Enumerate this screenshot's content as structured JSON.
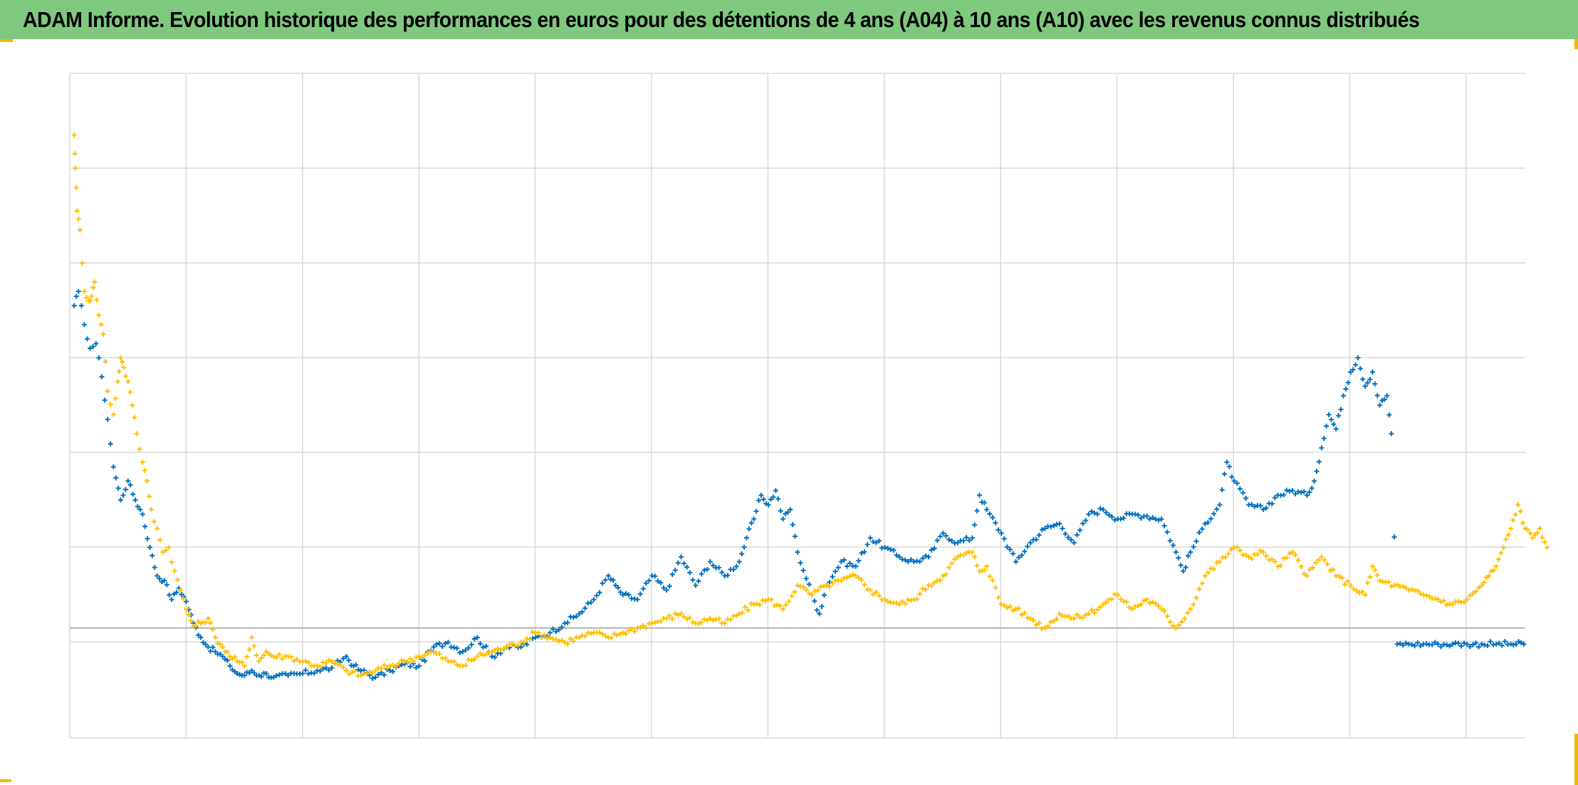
{
  "title": "ADAM Informe. Evolution historique des performances en euros pour des détentions de 4 ans (A04) à 10 ans (A10) avec les revenus connus distribués",
  "colors": {
    "title_bg": "#7fc97f",
    "frame_accent": "#f2b800",
    "grid": "#d9d9d9",
    "zero_line": "#bfbfbf"
  },
  "chart_data": {
    "type": "scatter",
    "marker": "plus",
    "grid": true,
    "legend": "none",
    "xlim": [
      0,
      100
    ],
    "ylim": [
      -1.16,
      5.85
    ],
    "x_gridlines": 12,
    "y_gridlines": 6,
    "series": [
      {
        "color": "#0070c0",
        "points": [
          [
            0.3,
            3.4
          ],
          [
            0.6,
            3.55
          ],
          [
            1.0,
            3.2
          ],
          [
            1.4,
            2.95
          ],
          [
            1.8,
            3.0
          ],
          [
            2.2,
            2.65
          ],
          [
            2.6,
            2.2
          ],
          [
            3.0,
            1.7
          ],
          [
            3.5,
            1.35
          ],
          [
            4.0,
            1.55
          ],
          [
            4.5,
            1.35
          ],
          [
            5.0,
            1.2
          ],
          [
            5.5,
            0.85
          ],
          [
            6.0,
            0.55
          ],
          [
            6.5,
            0.5
          ],
          [
            7.0,
            0.3
          ],
          [
            7.5,
            0.42
          ],
          [
            8.0,
            0.28
          ],
          [
            8.5,
            0.05
          ],
          [
            9.0,
            -0.1
          ],
          [
            9.5,
            -0.2
          ],
          [
            10.0,
            -0.25
          ],
          [
            10.5,
            -0.3
          ],
          [
            11.0,
            -0.4
          ],
          [
            11.5,
            -0.48
          ],
          [
            12.0,
            -0.5
          ],
          [
            12.5,
            -0.45
          ],
          [
            13.0,
            -0.5
          ],
          [
            13.5,
            -0.48
          ],
          [
            14.0,
            -0.52
          ],
          [
            15.0,
            -0.5
          ],
          [
            16.0,
            -0.48
          ],
          [
            17.0,
            -0.45
          ],
          [
            18.0,
            -0.42
          ],
          [
            19.0,
            -0.3
          ],
          [
            19.5,
            -0.4
          ],
          [
            20.0,
            -0.45
          ],
          [
            21.0,
            -0.52
          ],
          [
            22.0,
            -0.45
          ],
          [
            23.0,
            -0.38
          ],
          [
            24.0,
            -0.4
          ],
          [
            25.0,
            -0.2
          ],
          [
            26.0,
            -0.15
          ],
          [
            27.0,
            -0.25
          ],
          [
            28.0,
            -0.1
          ],
          [
            29.0,
            -0.3
          ],
          [
            30.0,
            -0.2
          ],
          [
            31.0,
            -0.2
          ],
          [
            32.0,
            -0.1
          ],
          [
            33.0,
            -0.05
          ],
          [
            34.0,
            0.05
          ],
          [
            35.0,
            0.15
          ],
          [
            36.0,
            0.3
          ],
          [
            37.0,
            0.55
          ],
          [
            37.5,
            0.45
          ],
          [
            38.0,
            0.35
          ],
          [
            39.0,
            0.3
          ],
          [
            40.0,
            0.55
          ],
          [
            41.0,
            0.4
          ],
          [
            42.0,
            0.75
          ],
          [
            43.0,
            0.45
          ],
          [
            44.0,
            0.7
          ],
          [
            45.0,
            0.55
          ],
          [
            46.0,
            0.7
          ],
          [
            46.5,
            0.95
          ],
          [
            47.0,
            1.15
          ],
          [
            47.5,
            1.4
          ],
          [
            48.0,
            1.3
          ],
          [
            48.5,
            1.45
          ],
          [
            49.0,
            1.15
          ],
          [
            49.5,
            1.25
          ],
          [
            50.0,
            0.8
          ],
          [
            51.0,
            0.35
          ],
          [
            51.5,
            0.15
          ],
          [
            52.0,
            0.45
          ],
          [
            53.0,
            0.7
          ],
          [
            54.0,
            0.65
          ],
          [
            55.0,
            0.95
          ],
          [
            56.0,
            0.85
          ],
          [
            57.0,
            0.75
          ],
          [
            58.0,
            0.7
          ],
          [
            59.0,
            0.75
          ],
          [
            60.0,
            1.0
          ],
          [
            61.0,
            0.9
          ],
          [
            62.0,
            0.95
          ],
          [
            62.5,
            1.4
          ],
          [
            63.0,
            1.25
          ],
          [
            64.0,
            1.0
          ],
          [
            65.0,
            0.7
          ],
          [
            66.0,
            0.9
          ],
          [
            67.0,
            1.05
          ],
          [
            68.0,
            1.1
          ],
          [
            69.0,
            0.9
          ],
          [
            70.0,
            1.2
          ],
          [
            71.0,
            1.25
          ],
          [
            72.0,
            1.15
          ],
          [
            73.0,
            1.2
          ],
          [
            74.0,
            1.18
          ],
          [
            75.0,
            1.15
          ],
          [
            76.0,
            0.8
          ],
          [
            76.5,
            0.6
          ],
          [
            77.0,
            0.8
          ],
          [
            78.0,
            1.1
          ],
          [
            79.0,
            1.3
          ],
          [
            79.5,
            1.75
          ],
          [
            80.0,
            1.55
          ],
          [
            81.0,
            1.3
          ],
          [
            82.0,
            1.25
          ],
          [
            83.0,
            1.4
          ],
          [
            84.0,
            1.45
          ],
          [
            85.0,
            1.4
          ],
          [
            85.5,
            1.55
          ],
          [
            86.0,
            1.9
          ],
          [
            86.5,
            2.25
          ],
          [
            87.0,
            2.1
          ],
          [
            87.5,
            2.45
          ],
          [
            88.0,
            2.7
          ],
          [
            88.5,
            2.85
          ],
          [
            89.0,
            2.55
          ],
          [
            89.5,
            2.7
          ],
          [
            90.0,
            2.35
          ],
          [
            90.5,
            2.45
          ],
          [
            90.8,
            2.05
          ],
          [
            91.2,
            -0.17
          ],
          [
            92,
            -0.17
          ],
          [
            93,
            -0.17
          ],
          [
            94,
            -0.17
          ],
          [
            95,
            -0.17
          ],
          [
            96,
            -0.17
          ],
          [
            97,
            -0.17
          ],
          [
            98,
            -0.17
          ],
          [
            99,
            -0.17
          ],
          [
            99.9,
            -0.17
          ]
        ]
      },
      {
        "color": "#ffc000",
        "points": [
          [
            0.3,
            5.2
          ],
          [
            0.4,
            4.85
          ],
          [
            0.5,
            4.4
          ],
          [
            0.7,
            4.2
          ],
          [
            1.0,
            3.55
          ],
          [
            1.3,
            3.45
          ],
          [
            1.5,
            3.5
          ],
          [
            1.7,
            3.65
          ],
          [
            2.0,
            3.3
          ],
          [
            2.3,
            3.1
          ],
          [
            2.6,
            2.5
          ],
          [
            3.0,
            2.25
          ],
          [
            3.3,
            2.6
          ],
          [
            3.5,
            2.85
          ],
          [
            3.7,
            2.75
          ],
          [
            4.0,
            2.6
          ],
          [
            4.3,
            2.35
          ],
          [
            4.6,
            2.05
          ],
          [
            5.0,
            1.75
          ],
          [
            5.3,
            1.55
          ],
          [
            5.6,
            1.25
          ],
          [
            6.0,
            1.05
          ],
          [
            6.4,
            0.8
          ],
          [
            6.8,
            0.85
          ],
          [
            7.2,
            0.6
          ],
          [
            7.6,
            0.4
          ],
          [
            8.0,
            0.2
          ],
          [
            8.5,
            0.02
          ],
          [
            9.0,
            0.05
          ],
          [
            9.5,
            0.1
          ],
          [
            10.0,
            -0.1
          ],
          [
            10.5,
            -0.2
          ],
          [
            11.0,
            -0.3
          ],
          [
            11.5,
            -0.35
          ],
          [
            12.0,
            -0.4
          ],
          [
            12.5,
            -0.1
          ],
          [
            13.0,
            -0.35
          ],
          [
            13.5,
            -0.25
          ],
          [
            14.0,
            -0.3
          ],
          [
            15.0,
            -0.3
          ],
          [
            16.0,
            -0.35
          ],
          [
            17.0,
            -0.4
          ],
          [
            18.0,
            -0.35
          ],
          [
            19.0,
            -0.45
          ],
          [
            20.0,
            -0.5
          ],
          [
            21.0,
            -0.45
          ],
          [
            22.0,
            -0.4
          ],
          [
            23.0,
            -0.35
          ],
          [
            24.0,
            -0.3
          ],
          [
            25.0,
            -0.25
          ],
          [
            26.0,
            -0.35
          ],
          [
            27.0,
            -0.4
          ],
          [
            28.0,
            -0.3
          ],
          [
            29.0,
            -0.25
          ],
          [
            30.0,
            -0.2
          ],
          [
            31.0,
            -0.15
          ],
          [
            32.0,
            -0.05
          ],
          [
            33.0,
            -0.1
          ],
          [
            34.0,
            -0.15
          ],
          [
            35.0,
            -0.1
          ],
          [
            36.0,
            -0.05
          ],
          [
            37.0,
            -0.1
          ],
          [
            38.0,
            -0.05
          ],
          [
            39.0,
            0.0
          ],
          [
            40.0,
            0.05
          ],
          [
            41.0,
            0.1
          ],
          [
            42.0,
            0.15
          ],
          [
            43.0,
            0.05
          ],
          [
            44.0,
            0.1
          ],
          [
            45.0,
            0.05
          ],
          [
            46.0,
            0.15
          ],
          [
            47.0,
            0.25
          ],
          [
            48.0,
            0.3
          ],
          [
            49.0,
            0.2
          ],
          [
            50.0,
            0.45
          ],
          [
            51.0,
            0.35
          ],
          [
            52.0,
            0.45
          ],
          [
            53.0,
            0.5
          ],
          [
            54.0,
            0.55
          ],
          [
            55.0,
            0.4
          ],
          [
            56.0,
            0.3
          ],
          [
            57.0,
            0.25
          ],
          [
            58.0,
            0.3
          ],
          [
            59.0,
            0.45
          ],
          [
            60.0,
            0.55
          ],
          [
            61.0,
            0.75
          ],
          [
            62.0,
            0.8
          ],
          [
            62.5,
            0.6
          ],
          [
            63.0,
            0.65
          ],
          [
            64.0,
            0.25
          ],
          [
            65.0,
            0.2
          ],
          [
            66.0,
            0.1
          ],
          [
            67.0,
            0.0
          ],
          [
            68.0,
            0.15
          ],
          [
            69.0,
            0.1
          ],
          [
            70.0,
            0.15
          ],
          [
            71.0,
            0.25
          ],
          [
            72.0,
            0.35
          ],
          [
            73.0,
            0.2
          ],
          [
            74.0,
            0.3
          ],
          [
            75.0,
            0.2
          ],
          [
            76.0,
            0.0
          ],
          [
            77.0,
            0.2
          ],
          [
            78.0,
            0.55
          ],
          [
            79.0,
            0.7
          ],
          [
            80.0,
            0.85
          ],
          [
            81.0,
            0.75
          ],
          [
            82.0,
            0.8
          ],
          [
            83.0,
            0.65
          ],
          [
            84.0,
            0.8
          ],
          [
            85.0,
            0.55
          ],
          [
            86.0,
            0.75
          ],
          [
            87.0,
            0.55
          ],
          [
            88.0,
            0.45
          ],
          [
            89.0,
            0.35
          ],
          [
            89.5,
            0.65
          ],
          [
            90.0,
            0.5
          ],
          [
            91.0,
            0.45
          ],
          [
            92.0,
            0.4
          ],
          [
            93.0,
            0.35
          ],
          [
            94.0,
            0.3
          ],
          [
            95.0,
            0.25
          ],
          [
            96.0,
            0.3
          ],
          [
            97.0,
            0.45
          ],
          [
            97.5,
            0.55
          ],
          [
            98.0,
            0.65
          ],
          [
            98.5,
            0.85
          ],
          [
            99.0,
            1.05
          ],
          [
            99.5,
            1.3
          ],
          [
            100.0,
            1.05
          ],
          [
            100.5,
            0.95
          ],
          [
            101.0,
            1.05
          ],
          [
            101.5,
            0.85
          ]
        ]
      }
    ]
  }
}
